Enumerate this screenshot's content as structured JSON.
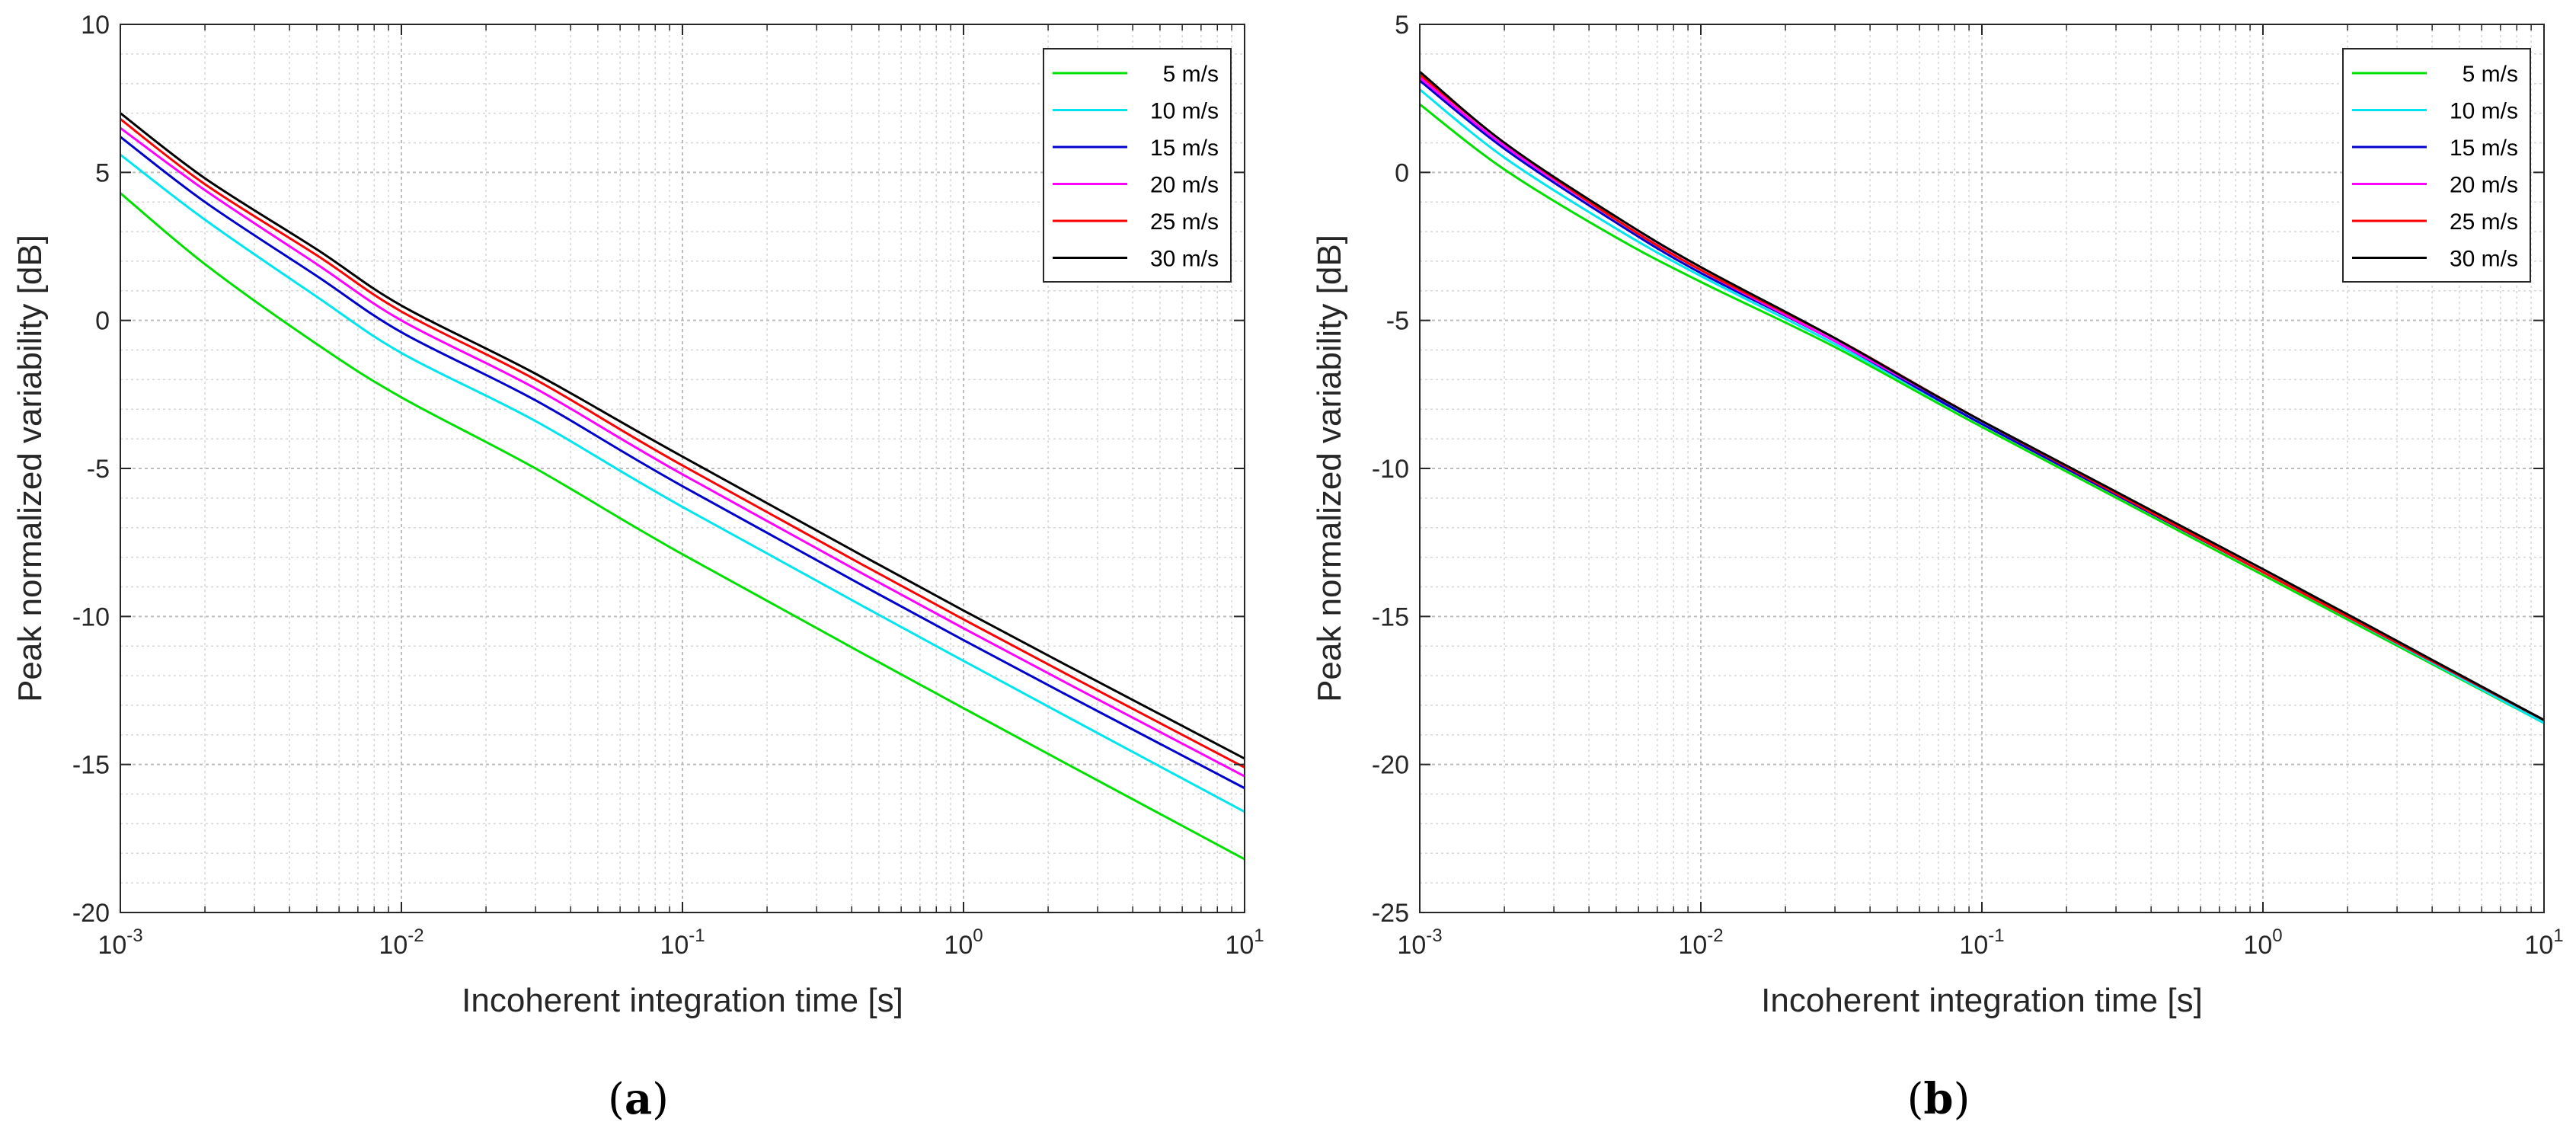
{
  "chart_data": [
    {
      "type": "line",
      "panel_label": "(a)",
      "xlabel": "Incoherent integration time [s]",
      "ylabel": "Peak normalized variability [dB]",
      "xscale": "log",
      "xlim": [
        0.001,
        10
      ],
      "ylim": [
        -20,
        10
      ],
      "yticks": [
        10,
        5,
        0,
        -5,
        -10,
        -15,
        -20
      ],
      "ytick_labels": [
        "10",
        "5",
        "0",
        "-5",
        "-10",
        "-15",
        "-20"
      ],
      "xtick_bases": [
        "10",
        "10",
        "10",
        "10",
        "10"
      ],
      "xtick_exponents": [
        "-3",
        "-2",
        "-1",
        "0",
        "1"
      ],
      "grid": true,
      "minor_grid": true,
      "legend_position": "top-right",
      "series": [
        {
          "name": "5 m/s",
          "color": "#00e000",
          "x": [
            0.001,
            0.002,
            0.005,
            0.01,
            0.03,
            0.1,
            1,
            10
          ],
          "y": [
            4.3,
            1.9,
            -0.8,
            -2.6,
            -5.0,
            -7.9,
            -13.1,
            -18.2
          ]
        },
        {
          "name": "10 m/s",
          "color": "#00e5ee",
          "x": [
            0.001,
            0.002,
            0.005,
            0.01,
            0.03,
            0.1,
            1,
            10
          ],
          "y": [
            5.6,
            3.4,
            0.8,
            -1.1,
            -3.4,
            -6.3,
            -11.5,
            -16.6
          ]
        },
        {
          "name": "15 m/s",
          "color": "#0000cc",
          "x": [
            0.001,
            0.002,
            0.005,
            0.01,
            0.03,
            0.1,
            1,
            10
          ],
          "y": [
            6.2,
            4.0,
            1.5,
            -0.4,
            -2.7,
            -5.6,
            -10.8,
            -15.8
          ]
        },
        {
          "name": "20 m/s",
          "color": "#ff00ff",
          "x": [
            0.001,
            0.002,
            0.005,
            0.01,
            0.03,
            0.1,
            1,
            10
          ],
          "y": [
            6.5,
            4.4,
            1.9,
            0.0,
            -2.3,
            -5.2,
            -10.4,
            -15.4
          ]
        },
        {
          "name": "25 m/s",
          "color": "#ff0000",
          "x": [
            0.001,
            0.002,
            0.005,
            0.01,
            0.03,
            0.1,
            1,
            10
          ],
          "y": [
            6.8,
            4.6,
            2.2,
            0.3,
            -2.0,
            -4.9,
            -10.1,
            -15.1
          ]
        },
        {
          "name": "30 m/s",
          "color": "#000000",
          "x": [
            0.001,
            0.002,
            0.005,
            0.01,
            0.03,
            0.1,
            1,
            10
          ],
          "y": [
            7.0,
            4.8,
            2.4,
            0.5,
            -1.8,
            -4.6,
            -9.8,
            -14.8
          ]
        }
      ]
    },
    {
      "type": "line",
      "panel_label": "(b)",
      "xlabel": "Incoherent integration time [s]",
      "ylabel": "Peak normalized variability [dB]",
      "xscale": "log",
      "xlim": [
        0.001,
        10
      ],
      "ylim": [
        -25,
        5
      ],
      "yticks": [
        5,
        0,
        -5,
        -10,
        -15,
        -20,
        -25
      ],
      "ytick_labels": [
        "5",
        "0",
        "-5",
        "-10",
        "-15",
        "-20",
        "-25"
      ],
      "xtick_bases": [
        "10",
        "10",
        "10",
        "10",
        "10"
      ],
      "xtick_exponents": [
        "-3",
        "-2",
        "-1",
        "0",
        "1"
      ],
      "grid": true,
      "minor_grid": true,
      "legend_position": "top-right",
      "series": [
        {
          "name": "5 m/s",
          "color": "#00e000",
          "x": [
            0.001,
            0.002,
            0.005,
            0.01,
            0.03,
            0.1,
            1,
            10
          ],
          "y": [
            2.3,
            0.1,
            -2.2,
            -3.7,
            -5.9,
            -8.6,
            -13.6,
            -18.6
          ]
        },
        {
          "name": "10 m/s",
          "color": "#00e5ee",
          "x": [
            0.001,
            0.002,
            0.005,
            0.01,
            0.03,
            0.1,
            1,
            10
          ],
          "y": [
            2.8,
            0.5,
            -1.9,
            -3.5,
            -5.8,
            -8.5,
            -13.5,
            -18.6
          ]
        },
        {
          "name": "15 m/s",
          "color": "#0000cc",
          "x": [
            0.001,
            0.002,
            0.005,
            0.01,
            0.03,
            0.1,
            1,
            10
          ],
          "y": [
            3.1,
            0.8,
            -1.7,
            -3.4,
            -5.7,
            -8.5,
            -13.5,
            -18.5
          ]
        },
        {
          "name": "20 m/s",
          "color": "#ff00ff",
          "x": [
            0.001,
            0.002,
            0.005,
            0.01,
            0.03,
            0.1,
            1,
            10
          ],
          "y": [
            3.2,
            0.9,
            -1.6,
            -3.3,
            -5.7,
            -8.4,
            -13.5,
            -18.5
          ]
        },
        {
          "name": "25 m/s",
          "color": "#ff0000",
          "x": [
            0.001,
            0.002,
            0.005,
            0.01,
            0.03,
            0.1,
            1,
            10
          ],
          "y": [
            3.3,
            1.0,
            -1.6,
            -3.3,
            -5.6,
            -8.4,
            -13.5,
            -18.5
          ]
        },
        {
          "name": "30 m/s",
          "color": "#000000",
          "x": [
            0.001,
            0.002,
            0.005,
            0.01,
            0.03,
            0.1,
            1,
            10
          ],
          "y": [
            3.4,
            1.0,
            -1.5,
            -3.2,
            -5.6,
            -8.4,
            -13.4,
            -18.5
          ]
        }
      ]
    }
  ]
}
